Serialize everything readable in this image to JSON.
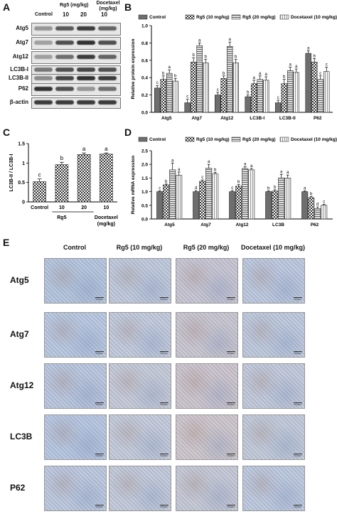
{
  "panels": {
    "A": "A",
    "B": "B",
    "C": "C",
    "D": "D",
    "E": "E"
  },
  "blot": {
    "dose_header": "Rg5 (mg/kg)",
    "docetaxel_header": "Docetaxel (mg/kg)",
    "columns": [
      "Control",
      "10",
      "20",
      "10"
    ],
    "rows": [
      "Atg5",
      "Atg7",
      "Atg12",
      "LC3B-I",
      "LC3B-II",
      "P62",
      "β-actin"
    ]
  },
  "legend": {
    "control": "Control",
    "rg5_10": "Rg5 (10 mg/kg)",
    "rg5_20": "Rg5 (20 mg/kg)",
    "doc_10": "Docetaxel (10 mg/kg)"
  },
  "chart_data": [
    {
      "type": "bar",
      "panel": "B",
      "ylabel": "Relative protein expression",
      "ylim": [
        0,
        1.0
      ],
      "yticks": [
        "0.0",
        "0.2",
        "0.4",
        "0.6",
        "0.8",
        "1.0"
      ],
      "categories": [
        "Atg5",
        "Atg7",
        "Atg12",
        "LC3B-I",
        "LC3B-II",
        "P62"
      ],
      "series": [
        {
          "name": "Control",
          "values": [
            0.28,
            0.11,
            0.2,
            0.18,
            0.11,
            0.68
          ],
          "errors": [
            0.03,
            0.04,
            0.03,
            0.02,
            0.03,
            0.03
          ],
          "letters": [
            "c",
            "c",
            "c",
            "b",
            "c",
            "a"
          ]
        },
        {
          "name": "Rg5 (10 mg/kg)",
          "values": [
            0.38,
            0.58,
            0.39,
            0.33,
            0.33,
            0.58
          ],
          "errors": [
            0.04,
            0.05,
            0.03,
            0.04,
            0.05,
            0.04
          ],
          "letters": [
            "b",
            "b",
            "b",
            "a",
            "b",
            "b"
          ]
        },
        {
          "name": "Rg5 (20 mg/kg)",
          "values": [
            0.45,
            0.77,
            0.76,
            0.38,
            0.48,
            0.38
          ],
          "errors": [
            0.04,
            0.03,
            0.05,
            0.04,
            0.04,
            0.04
          ],
          "letters": [
            "a",
            "a",
            "a",
            "a",
            "a",
            "c"
          ]
        },
        {
          "name": "Docetaxel (10 mg/kg)",
          "values": [
            0.36,
            0.57,
            0.57,
            0.37,
            0.46,
            0.47
          ],
          "errors": [
            0.03,
            0.04,
            0.04,
            0.04,
            0.04,
            0.05
          ],
          "letters": [
            "b",
            "b",
            "b",
            "a",
            "a",
            "c"
          ]
        }
      ]
    },
    {
      "type": "bar",
      "panel": "C",
      "ylabel": "LC3B-II / LC3B-I",
      "ylim": [
        0,
        1.5
      ],
      "yticks": [
        "0",
        "0.5",
        "1",
        "1.5"
      ],
      "categories": [
        "Control",
        "10",
        "20",
        "10"
      ],
      "group_labels": {
        "rg5": "Rg5",
        "doc": "Docetaxel",
        "unit": "(mg/kg)"
      },
      "values": [
        0.52,
        0.96,
        1.22,
        1.23
      ],
      "errors": [
        0.07,
        0.06,
        0.04,
        0.03
      ],
      "letters": [
        "c",
        "b",
        "a",
        "a"
      ]
    },
    {
      "type": "bar",
      "panel": "D",
      "ylabel": "Relative mRNA expression",
      "ylim": [
        0,
        2.5
      ],
      "yticks": [
        "0.0",
        "0.5",
        "1.0",
        "1.5",
        "2.0",
        "2.5"
      ],
      "categories": [
        "Atg5",
        "Atg7",
        "Atg12",
        "LC3B",
        "P62"
      ],
      "series": [
        {
          "name": "Control",
          "values": [
            1.0,
            1.0,
            1.0,
            1.0,
            1.0
          ],
          "errors": [
            0.03,
            0.04,
            0.04,
            0.03,
            0.03
          ],
          "letters": [
            "c",
            "d",
            "c",
            "b",
            "a"
          ]
        },
        {
          "name": "Rg5 (10 mg/kg)",
          "values": [
            1.25,
            1.38,
            1.2,
            1.02,
            0.78
          ],
          "errors": [
            0.03,
            0.05,
            0.06,
            0.05,
            0.04
          ],
          "letters": [
            "b",
            "c",
            "b",
            "b",
            "b"
          ]
        },
        {
          "name": "Rg5 (20 mg/kg)",
          "values": [
            1.8,
            1.86,
            1.85,
            1.5,
            0.38
          ],
          "errors": [
            0.25,
            0.14,
            0.06,
            0.13,
            0.06
          ],
          "letters": [
            "a",
            "a",
            "a",
            "a",
            "d"
          ]
        },
        {
          "name": "Docetaxel (10 mg/kg)",
          "values": [
            1.6,
            1.65,
            1.8,
            1.5,
            0.5
          ],
          "errors": [
            0.12,
            0.06,
            0.05,
            0.11,
            0.04
          ],
          "letters": [
            "a",
            "b",
            "a",
            "a",
            "c"
          ]
        }
      ]
    }
  ],
  "ihc": {
    "columns": [
      "Control",
      "Rg5 (10 mg/kg)",
      "Rg5 (20 mg/kg)",
      "Docetaxel (10 mg/kg)"
    ],
    "rows": [
      "Atg5",
      "Atg7",
      "Atg12",
      "LC3B",
      "P62"
    ],
    "scale_bar": "100μm"
  }
}
